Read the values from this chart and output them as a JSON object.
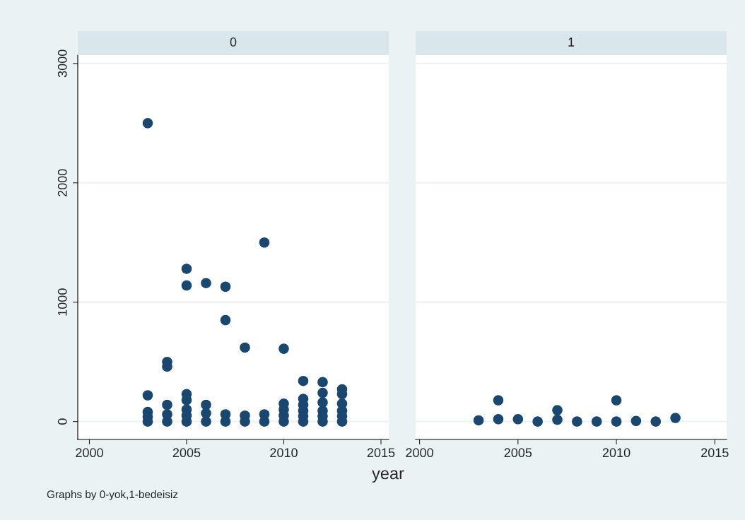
{
  "chart_data": [
    {
      "type": "scatter",
      "title": "0",
      "xlabel": "year",
      "annotations": [
        "Graphs by 0-yok,1-bedeisiz"
      ],
      "color": "#1a476f",
      "marker": "circle",
      "grid": "y",
      "x": [
        2003,
        2003,
        2003,
        2003,
        2003,
        2004,
        2004,
        2004,
        2004,
        2004,
        2005,
        2005,
        2005,
        2005,
        2005,
        2005,
        2005,
        2006,
        2006,
        2006,
        2006,
        2007,
        2007,
        2007,
        2007,
        2008,
        2008,
        2008,
        2009,
        2009,
        2009,
        2010,
        2010,
        2010,
        2010,
        2010,
        2011,
        2011,
        2011,
        2011,
        2011,
        2011,
        2012,
        2012,
        2012,
        2012,
        2012,
        2012,
        2013,
        2013,
        2013,
        2013,
        2013,
        2013
      ],
      "values": [
        2500,
        220,
        80,
        40,
        0,
        500,
        460,
        140,
        60,
        0,
        1280,
        1140,
        230,
        180,
        100,
        50,
        0,
        1160,
        140,
        70,
        0,
        1130,
        850,
        60,
        0,
        620,
        50,
        0,
        1500,
        60,
        0,
        610,
        150,
        100,
        50,
        0,
        340,
        190,
        140,
        90,
        45,
        0,
        330,
        240,
        160,
        90,
        45,
        0,
        270,
        230,
        150,
        90,
        45,
        0
      ],
      "xlim": [
        1999.4,
        2015.4
      ],
      "xticks": [
        2000,
        2005,
        2010,
        2015
      ],
      "ylim": [
        -150,
        3070
      ],
      "yticks": [
        0,
        1000,
        2000,
        3000
      ]
    },
    {
      "type": "scatter",
      "title": "1",
      "color": "#1a476f",
      "marker": "circle",
      "grid": "y",
      "tick_labels": "x",
      "x": [
        2003,
        2004,
        2004,
        2005,
        2006,
        2007,
        2007,
        2008,
        2009,
        2010,
        2010,
        2011,
        2012,
        2013
      ],
      "values": [
        10,
        178,
        20,
        20,
        0,
        95,
        15,
        0,
        0,
        178,
        0,
        5,
        0,
        30
      ],
      "xlim": [
        1999.8,
        2015.6
      ],
      "xticks": [
        2000,
        2005,
        2010,
        2015
      ],
      "ylim": [
        -150,
        3070
      ],
      "yticks": [
        0,
        1000,
        2000,
        3000
      ]
    }
  ]
}
